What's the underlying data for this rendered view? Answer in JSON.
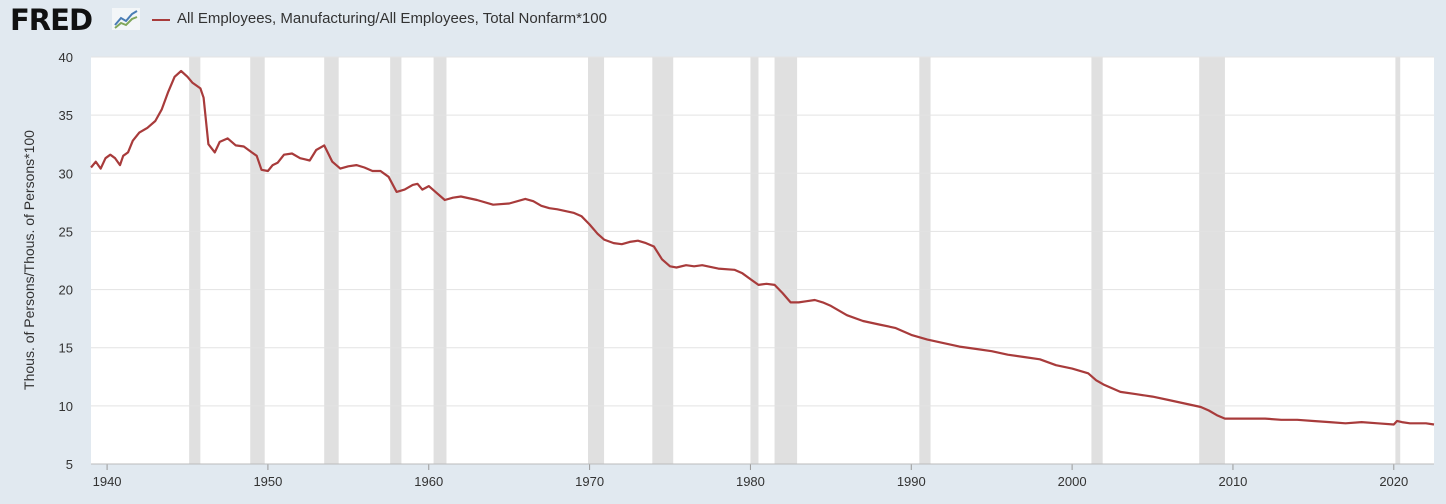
{
  "header": {
    "brand": "FRED",
    "brand_icon": "fred-line-chart-icon",
    "legend_label": "All Employees, Manufacturing/All Employees, Total Nonfarm*100",
    "legend_color": "#a83b3b"
  },
  "chart_data": {
    "type": "line",
    "title": "",
    "xlabel": "",
    "ylabel": "Thous. of Persons/Thous. of Persons*100",
    "xlim": [
      1939.0,
      2022.5
    ],
    "ylim": [
      5,
      40
    ],
    "yticks": [
      5,
      10,
      15,
      20,
      25,
      30,
      35,
      40
    ],
    "xticks": [
      1940,
      1950,
      1960,
      1970,
      1980,
      1990,
      2000,
      2010,
      2020
    ],
    "grid": true,
    "legend": "top-left",
    "colors": {
      "series": "#a83b3b",
      "recession": "#e0e0e0",
      "grid": "#e3e3e3"
    },
    "recessions": [
      [
        1945.1,
        1945.8
      ],
      [
        1948.9,
        1949.8
      ],
      [
        1953.5,
        1954.4
      ],
      [
        1957.6,
        1958.3
      ],
      [
        1960.3,
        1961.1
      ],
      [
        1969.9,
        1970.9
      ],
      [
        1973.9,
        1975.2
      ],
      [
        1980.0,
        1980.5
      ],
      [
        1981.5,
        1982.9
      ],
      [
        1990.5,
        1991.2
      ],
      [
        2001.2,
        2001.9
      ],
      [
        2007.9,
        2009.5
      ],
      [
        2020.1,
        2020.4
      ]
    ],
    "series": [
      {
        "name": "All Employees, Manufacturing/All Employees, Total Nonfarm*100",
        "x": [
          1939.0,
          1939.3,
          1939.6,
          1939.9,
          1940.2,
          1940.5,
          1940.8,
          1941.0,
          1941.3,
          1941.6,
          1942.0,
          1942.5,
          1943.0,
          1943.4,
          1943.8,
          1944.2,
          1944.6,
          1945.0,
          1945.3,
          1945.5,
          1945.8,
          1946.0,
          1946.3,
          1946.7,
          1947.0,
          1947.5,
          1948.0,
          1948.5,
          1949.0,
          1949.3,
          1949.6,
          1950.0,
          1950.3,
          1950.6,
          1951.0,
          1951.5,
          1952.0,
          1952.3,
          1952.6,
          1953.0,
          1953.5,
          1954.0,
          1954.5,
          1955.0,
          1955.5,
          1956.0,
          1956.5,
          1957.0,
          1957.5,
          1958.0,
          1958.5,
          1959.0,
          1959.3,
          1959.6,
          1960.0,
          1960.5,
          1961.0,
          1961.5,
          1962.0,
          1963.0,
          1964.0,
          1965.0,
          1966.0,
          1966.5,
          1967.0,
          1967.5,
          1968.0,
          1969.0,
          1969.5,
          1970.0,
          1970.5,
          1970.9,
          1971.5,
          1972.0,
          1972.5,
          1973.0,
          1973.5,
          1974.0,
          1974.5,
          1975.0,
          1975.4,
          1976.0,
          1976.5,
          1977.0,
          1978.0,
          1979.0,
          1979.5,
          1980.0,
          1980.5,
          1981.0,
          1981.5,
          1982.0,
          1982.5,
          1983.0,
          1983.5,
          1984.0,
          1984.5,
          1985.0,
          1986.0,
          1987.0,
          1988.0,
          1989.0,
          1990.0,
          1991.0,
          1992.0,
          1993.0,
          1994.0,
          1995.0,
          1996.0,
          1997.0,
          1998.0,
          1999.0,
          2000.0,
          2001.0,
          2001.5,
          2002.0,
          2003.0,
          2004.0,
          2005.0,
          2006.0,
          2007.0,
          2008.0,
          2008.5,
          2009.0,
          2009.5,
          2010.0,
          2011.0,
          2012.0,
          2013.0,
          2014.0,
          2015.0,
          2016.0,
          2017.0,
          2018.0,
          2019.0,
          2020.0,
          2020.2,
          2020.5,
          2021.0,
          2021.5,
          2022.0,
          2022.5
        ],
        "y": [
          30.5,
          31.0,
          30.4,
          31.3,
          31.6,
          31.3,
          30.7,
          31.5,
          31.8,
          32.8,
          33.5,
          33.9,
          34.5,
          35.5,
          37.0,
          38.3,
          38.8,
          38.3,
          37.8,
          37.6,
          37.3,
          36.5,
          32.5,
          31.8,
          32.7,
          33.0,
          32.4,
          32.3,
          31.8,
          31.5,
          30.3,
          30.2,
          30.7,
          30.9,
          31.6,
          31.7,
          31.3,
          31.2,
          31.1,
          32.0,
          32.4,
          31.0,
          30.4,
          30.6,
          30.7,
          30.5,
          30.2,
          30.2,
          29.7,
          28.4,
          28.6,
          29.0,
          29.1,
          28.6,
          28.9,
          28.3,
          27.7,
          27.9,
          28.0,
          27.7,
          27.3,
          27.4,
          27.8,
          27.6,
          27.2,
          27.0,
          26.9,
          26.6,
          26.3,
          25.6,
          24.8,
          24.3,
          24.0,
          23.9,
          24.1,
          24.2,
          24.0,
          23.7,
          22.6,
          22.0,
          21.9,
          22.1,
          22.0,
          22.1,
          21.8,
          21.7,
          21.4,
          20.9,
          20.4,
          20.5,
          20.4,
          19.7,
          18.9,
          18.9,
          19.0,
          19.1,
          18.9,
          18.6,
          17.8,
          17.3,
          17.0,
          16.7,
          16.1,
          15.7,
          15.4,
          15.1,
          14.9,
          14.7,
          14.4,
          14.2,
          14.0,
          13.5,
          13.2,
          12.8,
          12.2,
          11.8,
          11.2,
          11.0,
          10.8,
          10.5,
          10.2,
          9.9,
          9.6,
          9.2,
          8.9,
          8.9,
          8.9,
          8.9,
          8.8,
          8.8,
          8.7,
          8.6,
          8.5,
          8.6,
          8.5,
          8.4,
          8.7,
          8.6,
          8.5,
          8.5,
          8.5,
          8.4
        ]
      }
    ]
  }
}
